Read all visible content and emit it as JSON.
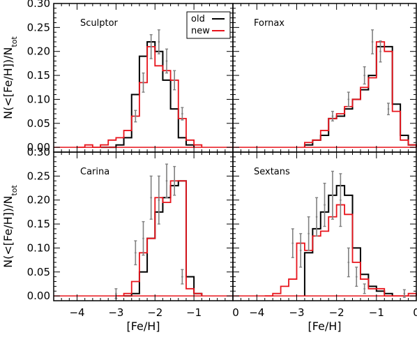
{
  "chart_data": {
    "type": "histogram-step",
    "xlabel": "[Fe/H]",
    "ylabel": "N(<[Fe/H])/N",
    "ylabel_subscript": "tot",
    "xlim": [
      -4.6,
      0.0
    ],
    "ylim": [
      -0.01,
      0.3
    ],
    "xticks": [
      -4,
      -3,
      -2,
      -1,
      0
    ],
    "xtick_labels": [
      "−4",
      "−3",
      "−2",
      "−1",
      "0"
    ],
    "xtick_labels_right": [
      "−4",
      "−3",
      "−2",
      "−1",
      "0"
    ],
    "yticks": [
      0.0,
      0.05,
      0.1,
      0.15,
      0.2,
      0.25,
      0.3
    ],
    "ytick_labels": [
      "0.00",
      "0.05",
      "0.10",
      "0.15",
      "0.20",
      "0.25",
      "0.30"
    ],
    "legend": {
      "placement": "top-right of first panel",
      "entries": [
        {
          "label": "old",
          "color": "#000000"
        },
        {
          "label": "new",
          "color": "#e8141c"
        }
      ]
    },
    "colors": {
      "old": "#000000",
      "new": "#e8141c",
      "error": "#808080"
    },
    "bin_width": 0.2,
    "panels": [
      {
        "name": "Sculptor",
        "series": [
          {
            "name": "old",
            "edges_start": -3.4,
            "values": [
              0.0,
              0.0,
              0.005,
              0.02,
              0.11,
              0.19,
              0.22,
              0.2,
              0.14,
              0.08,
              0.02,
              0.005
            ]
          },
          {
            "name": "new",
            "edges_start": -4.0,
            "values": [
              0.0,
              0.005,
              0.0,
              0.005,
              0.015,
              0.02,
              0.035,
              0.065,
              0.135,
              0.21,
              0.17,
              0.16,
              0.14,
              0.06,
              0.015,
              0.005
            ]
          }
        ],
        "errors": [
          {
            "x": -2.5,
            "y": 0.065,
            "err": 0.012
          },
          {
            "x": -2.3,
            "y": 0.135,
            "err": 0.02
          },
          {
            "x": -2.1,
            "y": 0.21,
            "err": 0.025
          },
          {
            "x": -1.9,
            "y": 0.22,
            "err": 0.025
          },
          {
            "x": -1.7,
            "y": 0.18,
            "err": 0.025
          },
          {
            "x": -1.5,
            "y": 0.14,
            "err": 0.02
          },
          {
            "x": -1.3,
            "y": 0.07,
            "err": 0.013
          }
        ]
      },
      {
        "name": "Fornax",
        "series": [
          {
            "name": "old",
            "edges_start": -2.8,
            "values": [
              0.005,
              0.015,
              0.025,
              0.06,
              0.065,
              0.08,
              0.1,
              0.12,
              0.15,
              0.21,
              0.21,
              0.09,
              0.025,
              0.005
            ]
          },
          {
            "name": "new",
            "edges_start": -2.8,
            "values": [
              0.01,
              0.015,
              0.035,
              0.06,
              0.07,
              0.085,
              0.1,
              0.125,
              0.145,
              0.22,
              0.2,
              0.075,
              0.015,
              0.005
            ]
          }
        ],
        "errors": [
          {
            "x": -2.1,
            "y": 0.065,
            "err": 0.01
          },
          {
            "x": -1.7,
            "y": 0.1,
            "err": 0.015
          },
          {
            "x": -1.3,
            "y": 0.15,
            "err": 0.018
          },
          {
            "x": -1.1,
            "y": 0.22,
            "err": 0.025
          },
          {
            "x": -0.9,
            "y": 0.2,
            "err": 0.022
          },
          {
            "x": -0.7,
            "y": 0.08,
            "err": 0.012
          }
        ]
      },
      {
        "name": "Carina",
        "series": [
          {
            "name": "old",
            "edges_start": -2.8,
            "values": [
              0.0,
              0.005,
              0.05,
              0.12,
              0.175,
              0.205,
              0.23,
              0.24,
              0.04,
              0.005
            ]
          },
          {
            "name": "new",
            "edges_start": -3.0,
            "values": [
              0.0,
              0.005,
              0.03,
              0.09,
              0.12,
              0.205,
              0.195,
              0.24,
              0.24,
              0.015,
              0.005
            ]
          }
        ],
        "errors": [
          {
            "x": -3.0,
            "y": 0.005,
            "err": 0.01
          },
          {
            "x": -2.5,
            "y": 0.09,
            "err": 0.025
          },
          {
            "x": -2.3,
            "y": 0.12,
            "err": 0.035
          },
          {
            "x": -2.1,
            "y": 0.205,
            "err": 0.045
          },
          {
            "x": -1.9,
            "y": 0.2,
            "err": 0.05
          },
          {
            "x": -1.7,
            "y": 0.24,
            "err": 0.035
          },
          {
            "x": -1.5,
            "y": 0.24,
            "err": 0.03
          },
          {
            "x": -1.3,
            "y": 0.04,
            "err": 0.015
          }
        ]
      },
      {
        "name": "Sextans",
        "series": [
          {
            "name": "old",
            "edges_start": -2.8,
            "values": [
              0.09,
              0.14,
              0.175,
              0.21,
              0.23,
              0.21,
              0.1,
              0.045,
              0.02,
              0.01,
              0.005
            ]
          },
          {
            "name": "new",
            "edges_start": -3.8,
            "values": [
              0.0,
              0.005,
              0.02,
              0.035,
              0.11,
              0.095,
              0.125,
              0.135,
              0.165,
              0.19,
              0.17,
              0.07,
              0.035,
              0.015,
              0.015,
              0.0,
              0.0,
              0.0,
              0.005
            ]
          }
        ],
        "errors": [
          {
            "x": -3.1,
            "y": 0.11,
            "err": 0.03
          },
          {
            "x": -2.9,
            "y": 0.095,
            "err": 0.035
          },
          {
            "x": -2.7,
            "y": 0.13,
            "err": 0.035
          },
          {
            "x": -2.5,
            "y": 0.165,
            "err": 0.04
          },
          {
            "x": -2.3,
            "y": 0.19,
            "err": 0.045
          },
          {
            "x": -2.1,
            "y": 0.21,
            "err": 0.05
          },
          {
            "x": -1.9,
            "y": 0.2,
            "err": 0.055
          },
          {
            "x": -1.7,
            "y": 0.07,
            "err": 0.03
          },
          {
            "x": -1.5,
            "y": 0.04,
            "err": 0.02
          },
          {
            "x": -1.3,
            "y": 0.015,
            "err": 0.01
          },
          {
            "x": -0.3,
            "y": 0.005,
            "err": 0.008
          }
        ]
      }
    ]
  }
}
